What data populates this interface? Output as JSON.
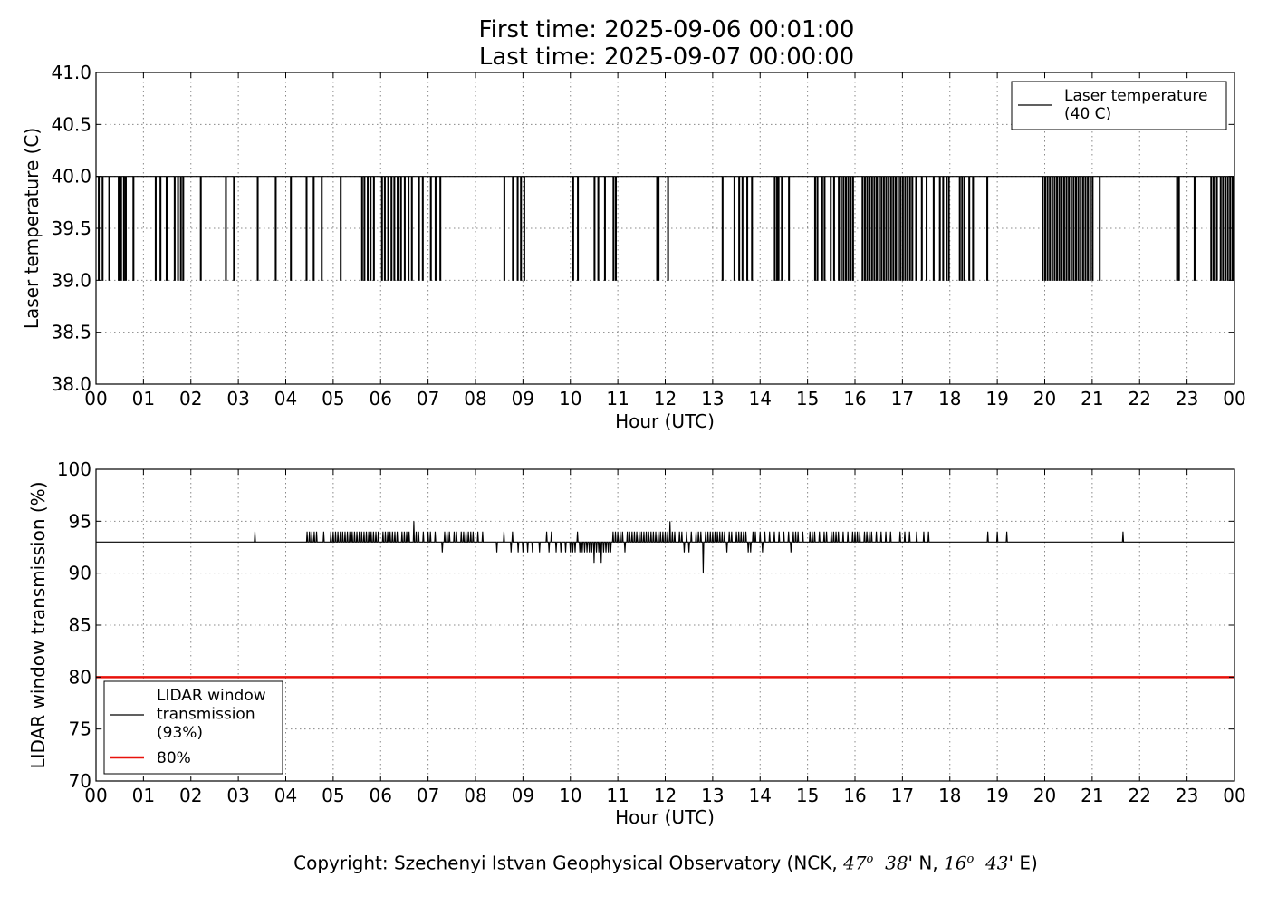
{
  "header": {
    "first_time": "First time: 2025-09-06 00:01:00",
    "last_time": "Last time: 2025-09-07 00:00:00"
  },
  "footer": {
    "prefix": "Copyright: Szechenyi Istvan Geophysical Observatory (NCK, ",
    "lat_deg": "47",
    "lat_min": "38",
    "lat_suffix": "' N, ",
    "lon_deg": "16",
    "lon_min": "43",
    "lon_suffix": "' E)",
    "degree_mark": "o"
  },
  "colors": {
    "series": "#000000",
    "threshold": "#e8120c",
    "grid": "#888888"
  },
  "chart_data": [
    {
      "type": "line",
      "ylabel": "Laser temperature (C)",
      "xlabel": "Hour (UTC)",
      "ylim": [
        38.0,
        41.0
      ],
      "xlim": [
        0,
        24
      ],
      "y_ticks": [
        "38.0",
        "38.5",
        "39.0",
        "39.5",
        "40.0",
        "40.5",
        "41.0"
      ],
      "x_ticks": [
        "00",
        "01",
        "02",
        "03",
        "04",
        "05",
        "06",
        "07",
        "08",
        "09",
        "10",
        "11",
        "12",
        "13",
        "14",
        "15",
        "16",
        "17",
        "18",
        "19",
        "20",
        "21",
        "22",
        "23",
        "00"
      ],
      "grid": true,
      "legend_position": "top-right",
      "series": [
        {
          "name": "Laser temperature\n(40 C)",
          "baseline": 40.0,
          "dip_value": 39.0,
          "dip_hours": [
            0.05,
            0.13,
            0.27,
            0.47,
            0.52,
            0.58,
            0.62,
            0.78,
            1.25,
            1.35,
            1.48,
            1.65,
            1.72,
            1.78,
            1.83,
            2.2,
            2.73,
            2.9,
            3.4,
            3.78,
            4.1,
            4.43,
            4.58,
            4.75,
            5.15,
            5.6,
            5.65,
            5.72,
            5.78,
            5.85,
            6.02,
            6.08,
            6.15,
            6.22,
            6.28,
            6.35,
            6.42,
            6.5,
            6.58,
            6.65,
            6.8,
            6.88,
            7.05,
            7.15,
            7.25,
            8.6,
            8.78,
            8.88,
            8.95,
            9.02,
            10.05,
            10.15,
            10.5,
            10.58,
            10.72,
            10.9,
            10.95,
            11.82,
            11.85,
            12.05,
            13.2,
            13.45,
            13.55,
            13.62,
            13.72,
            13.82,
            14.3,
            14.35,
            14.38,
            14.45,
            14.6,
            15.15,
            15.2,
            15.3,
            15.35,
            15.48,
            15.55,
            15.65,
            15.7,
            15.75,
            15.8,
            15.85,
            15.9,
            15.95,
            16.15,
            16.2,
            16.25,
            16.3,
            16.35,
            16.4,
            16.45,
            16.5,
            16.55,
            16.6,
            16.65,
            16.7,
            16.75,
            16.8,
            16.85,
            16.9,
            16.95,
            17.0,
            17.05,
            17.1,
            17.15,
            17.2,
            17.28,
            17.4,
            17.5,
            17.65,
            17.78,
            17.85,
            17.92,
            17.97,
            18.2,
            18.25,
            18.3,
            18.4,
            18.48,
            18.78,
            19.95,
            20.0,
            20.05,
            20.1,
            20.15,
            20.2,
            20.25,
            20.3,
            20.35,
            20.4,
            20.45,
            20.5,
            20.55,
            20.6,
            20.65,
            20.7,
            20.75,
            20.8,
            20.85,
            20.9,
            20.95,
            21.0,
            21.15,
            22.78,
            22.82,
            23.15,
            23.5,
            23.55,
            23.62,
            23.7,
            23.75,
            23.8,
            23.85,
            23.9,
            23.95,
            23.98
          ]
        }
      ]
    },
    {
      "type": "line",
      "ylabel": "LIDAR window transmission (%)",
      "xlabel": "Hour (UTC)",
      "ylim": [
        70,
        100
      ],
      "xlim": [
        0,
        24
      ],
      "y_ticks": [
        "70",
        "75",
        "80",
        "85",
        "90",
        "95",
        "100"
      ],
      "x_ticks": [
        "00",
        "01",
        "02",
        "03",
        "04",
        "05",
        "06",
        "07",
        "08",
        "09",
        "10",
        "11",
        "12",
        "13",
        "14",
        "15",
        "16",
        "17",
        "18",
        "19",
        "20",
        "21",
        "22",
        "23",
        "00"
      ],
      "grid": true,
      "legend_position": "bottom-left",
      "series": [
        {
          "name": "LIDAR window\ntransmission\n(93%)",
          "baseline": 93,
          "spikes": [
            [
              3.35,
              94
            ],
            [
              4.45,
              94
            ],
            [
              4.5,
              94
            ],
            [
              4.55,
              94
            ],
            [
              4.6,
              94
            ],
            [
              4.65,
              94
            ],
            [
              4.8,
              94
            ],
            [
              4.95,
              94
            ],
            [
              5.0,
              94
            ],
            [
              5.05,
              94
            ],
            [
              5.1,
              94
            ],
            [
              5.15,
              94
            ],
            [
              5.2,
              94
            ],
            [
              5.25,
              94
            ],
            [
              5.3,
              94
            ],
            [
              5.35,
              94
            ],
            [
              5.4,
              94
            ],
            [
              5.45,
              94
            ],
            [
              5.5,
              94
            ],
            [
              5.55,
              94
            ],
            [
              5.6,
              94
            ],
            [
              5.65,
              94
            ],
            [
              5.7,
              94
            ],
            [
              5.75,
              94
            ],
            [
              5.8,
              94
            ],
            [
              5.85,
              94
            ],
            [
              5.9,
              94
            ],
            [
              5.95,
              94
            ],
            [
              6.05,
              94
            ],
            [
              6.1,
              94
            ],
            [
              6.15,
              94
            ],
            [
              6.2,
              94
            ],
            [
              6.25,
              94
            ],
            [
              6.3,
              94
            ],
            [
              6.35,
              94
            ],
            [
              6.45,
              94
            ],
            [
              6.5,
              94
            ],
            [
              6.55,
              94
            ],
            [
              6.6,
              94
            ],
            [
              6.7,
              95
            ],
            [
              6.75,
              94
            ],
            [
              6.8,
              94
            ],
            [
              6.9,
              94
            ],
            [
              7.0,
              94
            ],
            [
              7.05,
              94
            ],
            [
              7.15,
              94
            ],
            [
              7.3,
              92
            ],
            [
              7.35,
              94
            ],
            [
              7.4,
              94
            ],
            [
              7.45,
              94
            ],
            [
              7.55,
              94
            ],
            [
              7.6,
              94
            ],
            [
              7.7,
              94
            ],
            [
              7.75,
              94
            ],
            [
              7.8,
              94
            ],
            [
              7.85,
              94
            ],
            [
              7.9,
              94
            ],
            [
              7.95,
              94
            ],
            [
              8.05,
              94
            ],
            [
              8.15,
              94
            ],
            [
              8.45,
              92
            ],
            [
              8.6,
              94
            ],
            [
              8.75,
              92
            ],
            [
              8.78,
              94
            ],
            [
              8.9,
              92
            ],
            [
              9.0,
              92
            ],
            [
              9.1,
              92
            ],
            [
              9.2,
              92
            ],
            [
              9.35,
              92
            ],
            [
              9.5,
              94
            ],
            [
              9.55,
              92
            ],
            [
              9.6,
              94
            ],
            [
              9.7,
              92
            ],
            [
              9.8,
              92
            ],
            [
              9.9,
              92
            ],
            [
              10.0,
              92
            ],
            [
              10.05,
              92
            ],
            [
              10.1,
              92
            ],
            [
              10.15,
              94
            ],
            [
              10.2,
              92
            ],
            [
              10.25,
              92
            ],
            [
              10.3,
              92
            ],
            [
              10.35,
              92
            ],
            [
              10.4,
              92
            ],
            [
              10.45,
              92
            ],
            [
              10.5,
              91
            ],
            [
              10.55,
              92
            ],
            [
              10.6,
              92
            ],
            [
              10.65,
              91
            ],
            [
              10.7,
              92
            ],
            [
              10.75,
              92
            ],
            [
              10.8,
              92
            ],
            [
              10.85,
              92
            ],
            [
              10.9,
              94
            ],
            [
              10.95,
              94
            ],
            [
              11.0,
              94
            ],
            [
              11.05,
              94
            ],
            [
              11.1,
              94
            ],
            [
              11.15,
              92
            ],
            [
              11.2,
              94
            ],
            [
              11.25,
              94
            ],
            [
              11.3,
              94
            ],
            [
              11.35,
              94
            ],
            [
              11.4,
              94
            ],
            [
              11.45,
              94
            ],
            [
              11.5,
              94
            ],
            [
              11.55,
              94
            ],
            [
              11.6,
              94
            ],
            [
              11.65,
              94
            ],
            [
              11.7,
              94
            ],
            [
              11.75,
              94
            ],
            [
              11.8,
              94
            ],
            [
              11.85,
              94
            ],
            [
              11.9,
              94
            ],
            [
              11.95,
              94
            ],
            [
              12.0,
              94
            ],
            [
              12.05,
              94
            ],
            [
              12.1,
              95
            ],
            [
              12.15,
              94
            ],
            [
              12.2,
              94
            ],
            [
              12.3,
              94
            ],
            [
              12.35,
              94
            ],
            [
              12.4,
              92
            ],
            [
              12.45,
              94
            ],
            [
              12.5,
              92
            ],
            [
              12.55,
              94
            ],
            [
              12.65,
              94
            ],
            [
              12.7,
              94
            ],
            [
              12.75,
              94
            ],
            [
              12.8,
              90
            ],
            [
              12.85,
              94
            ],
            [
              12.9,
              94
            ],
            [
              12.95,
              94
            ],
            [
              13.0,
              94
            ],
            [
              13.05,
              94
            ],
            [
              13.1,
              94
            ],
            [
              13.15,
              94
            ],
            [
              13.2,
              94
            ],
            [
              13.25,
              94
            ],
            [
              13.3,
              92
            ],
            [
              13.35,
              94
            ],
            [
              13.4,
              94
            ],
            [
              13.5,
              94
            ],
            [
              13.55,
              94
            ],
            [
              13.6,
              94
            ],
            [
              13.65,
              94
            ],
            [
              13.7,
              94
            ],
            [
              13.75,
              92
            ],
            [
              13.8,
              92
            ],
            [
              13.85,
              94
            ],
            [
              13.9,
              94
            ],
            [
              14.0,
              94
            ],
            [
              14.05,
              92
            ],
            [
              14.1,
              94
            ],
            [
              14.2,
              94
            ],
            [
              14.3,
              94
            ],
            [
              14.4,
              94
            ],
            [
              14.5,
              94
            ],
            [
              14.6,
              94
            ],
            [
              14.65,
              92
            ],
            [
              14.7,
              94
            ],
            [
              14.75,
              94
            ],
            [
              14.8,
              94
            ],
            [
              14.9,
              94
            ],
            [
              15.05,
              94
            ],
            [
              15.1,
              94
            ],
            [
              15.15,
              94
            ],
            [
              15.25,
              94
            ],
            [
              15.35,
              94
            ],
            [
              15.4,
              94
            ],
            [
              15.5,
              94
            ],
            [
              15.55,
              94
            ],
            [
              15.6,
              94
            ],
            [
              15.65,
              94
            ],
            [
              15.75,
              94
            ],
            [
              15.85,
              94
            ],
            [
              15.95,
              94
            ],
            [
              16.0,
              94
            ],
            [
              16.05,
              94
            ],
            [
              16.1,
              94
            ],
            [
              16.2,
              94
            ],
            [
              16.25,
              94
            ],
            [
              16.3,
              94
            ],
            [
              16.35,
              94
            ],
            [
              16.45,
              94
            ],
            [
              16.55,
              94
            ],
            [
              16.65,
              94
            ],
            [
              16.75,
              94
            ],
            [
              16.95,
              94
            ],
            [
              17.05,
              94
            ],
            [
              17.15,
              94
            ],
            [
              17.3,
              94
            ],
            [
              17.45,
              94
            ],
            [
              17.55,
              94
            ],
            [
              18.8,
              94
            ],
            [
              19.0,
              94
            ],
            [
              19.2,
              94
            ],
            [
              21.65,
              94
            ]
          ]
        },
        {
          "name": "80%",
          "constant": 80
        }
      ]
    }
  ]
}
